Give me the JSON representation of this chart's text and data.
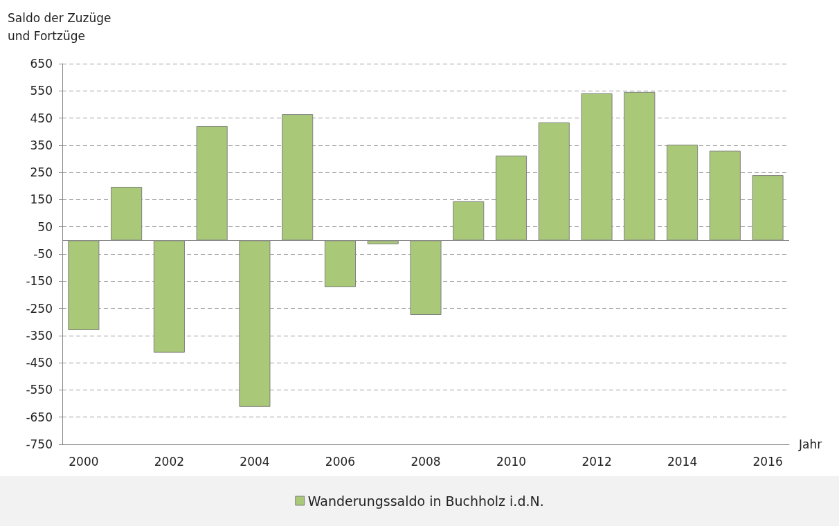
{
  "chart_data": {
    "type": "bar",
    "ylabel": "Saldo der Zuzüge\nund Fortzüge",
    "xlabel": "Jahr",
    "categories": [
      "2000",
      null,
      "2002",
      null,
      "2004",
      null,
      "2006",
      null,
      "2008",
      null,
      "2010",
      null,
      "2012",
      null,
      "2014",
      null,
      "2016"
    ],
    "series": [
      {
        "name": "Wanderungssaldo in Buchholz i.d.N.",
        "color": "#a9c878",
        "values": [
          -330,
          197,
          -413,
          421,
          -612,
          464,
          -172,
          -14,
          -274,
          144,
          312,
          434,
          541,
          546,
          352,
          330,
          240
        ]
      }
    ],
    "ylim": [
      -750,
      650
    ],
    "yticks": [
      -750,
      -650,
      -550,
      -450,
      -350,
      -250,
      -150,
      -50,
      50,
      150,
      250,
      350,
      450,
      550,
      650
    ],
    "grid": "y",
    "legend": "bottom"
  }
}
